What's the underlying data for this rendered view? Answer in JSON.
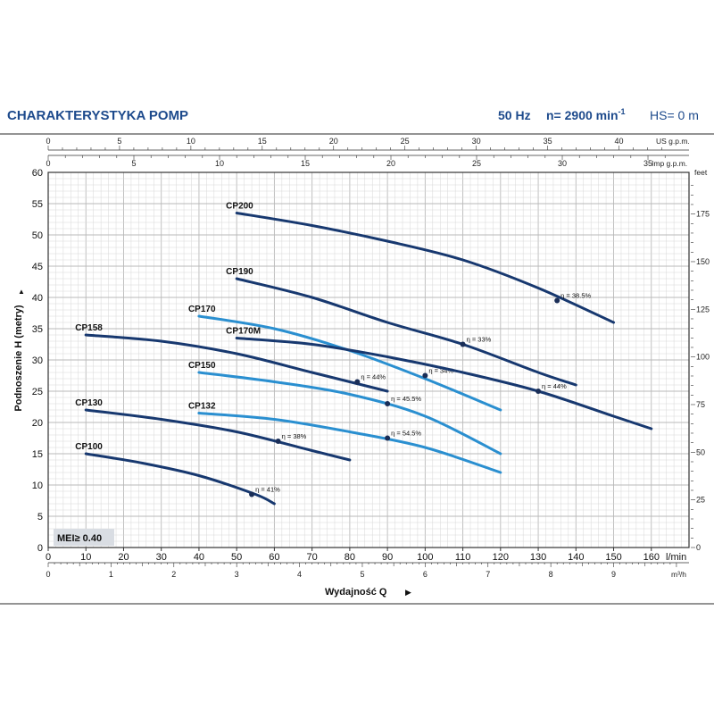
{
  "header": {
    "title": "CHARAKTERYSTYKA POMP",
    "freq": "50 Hz",
    "speed_prefix": "n= 2900 min",
    "speed_sup": "-1",
    "hs": "HS= 0 m"
  },
  "mei_badge": "MEI≥ 0.40",
  "colors": {
    "title": "#1d4a8c",
    "dark_curve": "#17386f",
    "light_curve": "#2a8fd0",
    "grid_minor": "#d7d7d7",
    "grid_major": "#b9b9b9"
  },
  "chart_data": {
    "type": "line",
    "x": {
      "label": "Wydajność Q",
      "unit": "l/min",
      "lim": [
        0,
        170
      ],
      "ticks": [
        0,
        10,
        20,
        30,
        40,
        50,
        60,
        70,
        80,
        90,
        100,
        110,
        120,
        130,
        140,
        150,
        160
      ]
    },
    "y": {
      "label": "Podnoszenie H  (metry)",
      "lim": [
        0,
        60
      ],
      "ticks": [
        0,
        5,
        10,
        15,
        20,
        25,
        30,
        35,
        40,
        45,
        50,
        55,
        60
      ]
    },
    "secondary_axes": [
      {
        "position": "top",
        "unit": "US g.p.m.",
        "ticks": [
          "0",
          "5",
          "10",
          "15",
          "20",
          "25",
          "30",
          "35",
          "40"
        ],
        "values": [
          0,
          5,
          10,
          15,
          20,
          25,
          30,
          35,
          40
        ]
      },
      {
        "position": "top",
        "unit": "Imp g.p.m.",
        "ticks": [
          "0",
          "5",
          "10",
          "15",
          "20",
          "25",
          "30",
          "35"
        ],
        "values": [
          0,
          5,
          10,
          15,
          20,
          25,
          30,
          35
        ]
      },
      {
        "position": "right",
        "unit": "feet",
        "ticks": [
          "0",
          "25",
          "50",
          "75",
          "100",
          "125",
          "150",
          "175"
        ],
        "values": [
          0,
          25,
          50,
          75,
          100,
          125,
          150,
          175
        ]
      },
      {
        "position": "bottom",
        "unit": "m³/h",
        "ticks": [
          "0",
          "1",
          "2",
          "3",
          "4",
          "5",
          "6",
          "7",
          "8",
          "9"
        ],
        "values": [
          0,
          1,
          2,
          3,
          4,
          5,
          6,
          7,
          8,
          9
        ]
      }
    ],
    "grid": true,
    "series": [
      {
        "name": "CP200",
        "color": "dark",
        "x": [
          50,
          70,
          90,
          110,
          130,
          150
        ],
        "y": [
          53.5,
          51.5,
          49,
          46,
          41.5,
          36
        ],
        "efficiency_point": {
          "x": 135,
          "y": 39.5,
          "label": "η = 38.5%"
        }
      },
      {
        "name": "CP190",
        "color": "dark",
        "x": [
          50,
          70,
          90,
          110,
          130,
          140
        ],
        "y": [
          43,
          40,
          36,
          32.5,
          28,
          26
        ],
        "efficiency_point": {
          "x": 110,
          "y": 32.5,
          "label": "η = 33%"
        }
      },
      {
        "name": "CP170",
        "color": "light",
        "x": [
          40,
          60,
          80,
          100,
          120
        ],
        "y": [
          37,
          35,
          31.5,
          27,
          22
        ],
        "efficiency_point": {
          "x": 100,
          "y": 27.5,
          "label": "η = 34%"
        }
      },
      {
        "name": "CP170M",
        "color": "dark",
        "x": [
          50,
          70,
          90,
          110,
          130,
          150,
          160
        ],
        "y": [
          33.5,
          32.5,
          30.5,
          28,
          25,
          21,
          19
        ],
        "efficiency_point": {
          "x": 130,
          "y": 25,
          "label": "η = 44%"
        }
      },
      {
        "name": "CP158",
        "color": "dark",
        "x": [
          10,
          30,
          50,
          70,
          90
        ],
        "y": [
          34,
          33,
          31,
          28,
          25
        ],
        "efficiency_point": {
          "x": 82,
          "y": 26.5,
          "label": "η = 44%"
        }
      },
      {
        "name": "CP150",
        "color": "light",
        "x": [
          40,
          60,
          80,
          100,
          120
        ],
        "y": [
          28,
          26.5,
          24.5,
          21,
          15
        ],
        "efficiency_point": {
          "x": 90,
          "y": 23,
          "label": "η = 45.5%"
        }
      },
      {
        "name": "CP132",
        "color": "light",
        "x": [
          40,
          60,
          80,
          100,
          120
        ],
        "y": [
          21.5,
          20.5,
          18.5,
          16,
          12
        ],
        "efficiency_point": {
          "x": 90,
          "y": 17.5,
          "label": "η = 54.5%"
        }
      },
      {
        "name": "CP130",
        "color": "dark",
        "x": [
          10,
          30,
          50,
          70,
          80
        ],
        "y": [
          22,
          20.5,
          18.5,
          15.5,
          14
        ],
        "efficiency_point": {
          "x": 61,
          "y": 17,
          "label": "η = 38%"
        }
      },
      {
        "name": "CP100",
        "color": "dark",
        "x": [
          10,
          25,
          40,
          55,
          60
        ],
        "y": [
          15,
          13.5,
          11.5,
          8.5,
          7
        ],
        "efficiency_point": {
          "x": 54,
          "y": 8.5,
          "label": "η = 41%"
        }
      }
    ]
  }
}
